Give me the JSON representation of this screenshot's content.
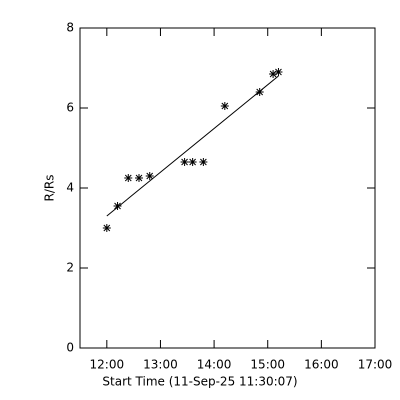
{
  "chart_data": {
    "type": "scatter",
    "x_label": "Start Time (11-Sep-25 11:30:07)",
    "y_label": "R/Rs",
    "x": [
      12.0,
      12.2,
      12.4,
      12.6,
      12.8,
      13.45,
      13.6,
      13.8,
      14.2,
      14.85,
      15.1,
      15.2
    ],
    "values": [
      3.0,
      3.55,
      4.25,
      4.25,
      4.3,
      4.65,
      4.65,
      4.65,
      6.05,
      6.4,
      6.85,
      6.9
    ],
    "color": "#000000",
    "fit": {
      "x": [
        12.0,
        15.2
      ],
      "values": [
        3.3,
        6.8
      ]
    },
    "xlim": [
      11.5,
      17.0
    ],
    "xticks": [
      {
        "value": 12,
        "label": "12:00"
      },
      {
        "value": 13,
        "label": "13:00"
      },
      {
        "value": 14,
        "label": "14:00"
      },
      {
        "value": 15,
        "label": "15:00"
      },
      {
        "value": 16,
        "label": "16:00"
      },
      {
        "value": 17,
        "label": "17:00"
      }
    ],
    "ylim": [
      0,
      8
    ],
    "yticks": [
      0,
      2,
      4,
      6,
      8
    ],
    "grid": false
  }
}
